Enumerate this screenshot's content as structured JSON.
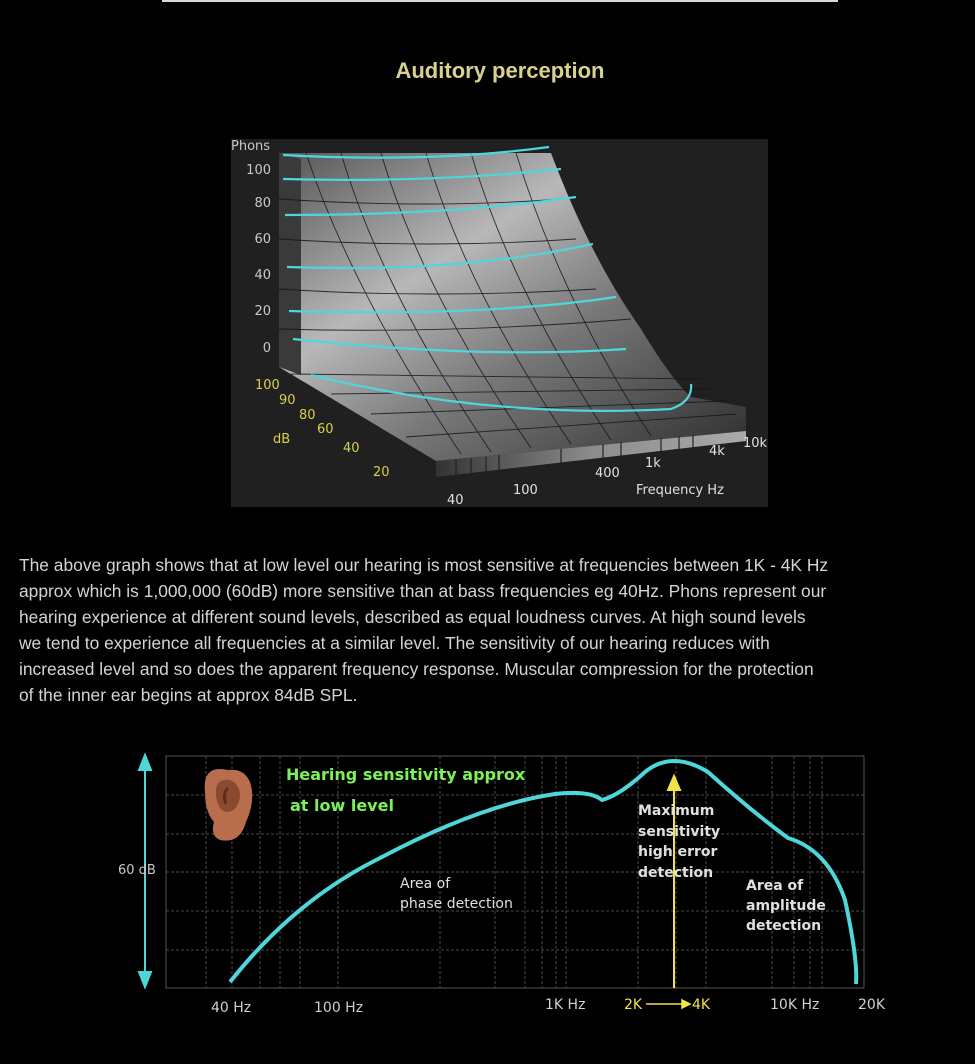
{
  "page": {
    "title": "Auditory perception",
    "paragraph": "The above graph shows that at low level our hearing is most sensitive at frequencies between 1K - 4K Hz\napprox which is 1,000,000 (60dB) more sensitive than at bass frequencies eg 40Hz.   Phons represent our\nhearing experience at different sound levels, described as equal loudness curves.   At high sound levels\nwe tend to experience all frequencies at a similar level.   The sensitivity of our hearing reduces with\nincreased level and so does the apparent frequency response.   Muscular compression for the protection\nof the inner ear begins at approx 84dB SPL."
  },
  "colors": {
    "title": "#d9d28f",
    "curve": "#4fd6da",
    "phon_labels": "#c9c9c9",
    "db_labels": "#d8cf4a",
    "green_text": "#7cf25a",
    "yellow": "#f2e24a",
    "white_axis": "#e0e0e0"
  },
  "chart_data": [
    {
      "type": "surface",
      "y_axis_label": "Phons",
      "phon_ticks": [
        "100",
        "80",
        "60",
        "40",
        "20",
        "0"
      ],
      "depth_axis_label": "dB",
      "db_ticks": [
        "100",
        "90",
        "80",
        "60",
        "40",
        "20"
      ],
      "x_axis_label": "Frequency Hz",
      "frequency_ticks": [
        "40",
        "100",
        "400",
        "1k",
        "4k",
        "10k"
      ],
      "equal_loudness_curves_phons": [
        100,
        80,
        60,
        40,
        20,
        0
      ]
    },
    {
      "type": "line",
      "title_line1": "Hearing sensitivity approx",
      "title_line2": "at low level",
      "ylabel": "60 dB",
      "x_ticks": [
        "40 Hz",
        "100 Hz",
        "1K Hz",
        "2K",
        "4K",
        "10K Hz",
        "20K"
      ],
      "annotations": {
        "max": [
          "Maximum",
          "sensitivity",
          "high error",
          "detection"
        ],
        "phase": [
          "Area of",
          "phase detection"
        ],
        "amplitude": [
          "Area of",
          "amplitude",
          "detection"
        ]
      },
      "icon": "ear-icon"
    }
  ]
}
